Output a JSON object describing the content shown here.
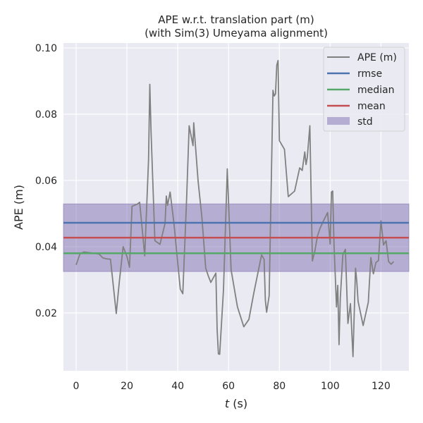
{
  "chart_data": {
    "type": "line",
    "title": "APE w.r.t. translation part (m)",
    "subtitle": "(with Sim(3) Umeyama alignment)",
    "xlabel": "t (s)",
    "xlabel_italic_part": "t",
    "xlabel_rest": " (s)",
    "ylabel": "APE (m)",
    "xlim": [
      -5,
      131
    ],
    "ylim": [
      0.0025,
      0.1015
    ],
    "xticks": [
      0,
      20,
      40,
      60,
      80,
      100,
      120
    ],
    "yticks": [
      0.02,
      0.04,
      0.06,
      0.08,
      0.1
    ],
    "ytick_labels": [
      "0.02",
      "0.04",
      "0.06",
      "0.08",
      "0.10"
    ],
    "grid": true,
    "legend_position": "top-right",
    "legend": [
      "APE (m)",
      "rmse",
      "median",
      "mean",
      "std"
    ],
    "stats": {
      "rmse": 0.0472,
      "median": 0.038,
      "mean": 0.0427,
      "std_low": 0.0325,
      "std_high": 0.0529
    },
    "colors": {
      "ape": "#808080",
      "rmse": "#4c72b0",
      "median": "#55a868",
      "mean": "#c44e52",
      "std": "#8172b2",
      "background": "#eaeaf2",
      "grid": "#ffffff"
    },
    "series": [
      {
        "name": "APE (m)",
        "x": [
          0,
          1.5,
          3,
          5,
          7,
          9,
          10.5,
          12,
          13.5,
          14.5,
          15.8,
          17,
          18.5,
          20,
          21,
          22,
          24,
          25,
          27,
          28.5,
          29,
          29.5,
          31,
          33,
          35,
          35.5,
          36,
          37,
          38.5,
          41,
          42,
          43.5,
          44.5,
          46,
          46.3,
          48,
          49.5,
          51,
          52,
          53,
          55,
          55.5,
          56,
          56.5,
          58,
          59.5,
          61,
          63.5,
          66,
          68,
          70,
          73,
          74,
          74.5,
          75,
          76,
          77.5,
          78,
          78.5,
          79,
          79.5,
          80,
          82,
          83.5,
          86,
          88,
          89,
          90,
          90.5,
          91,
          92,
          93,
          94,
          95,
          96,
          97.5,
          99,
          100,
          100.5,
          101,
          101.5,
          102.5,
          103,
          103.5,
          104,
          105,
          106,
          107,
          108,
          109,
          110,
          110.5,
          111,
          113,
          115,
          116,
          117,
          118,
          119,
          120,
          121,
          122,
          123,
          124,
          125
        ],
        "values": [
          0.0345,
          0.0378,
          0.0384,
          0.0382,
          0.038,
          0.0378,
          0.0366,
          0.0363,
          0.0362,
          0.029,
          0.0198,
          0.0295,
          0.04,
          0.037,
          0.0338,
          0.0522,
          0.0528,
          0.0534,
          0.0372,
          0.0662,
          0.089,
          0.0745,
          0.0418,
          0.0407,
          0.047,
          0.0553,
          0.0525,
          0.0565,
          0.0471,
          0.0272,
          0.0258,
          0.0545,
          0.0765,
          0.0705,
          0.0774,
          0.0598,
          0.0488,
          0.0335,
          0.0312,
          0.0292,
          0.032,
          0.0149,
          0.0076,
          0.0075,
          0.027,
          0.0635,
          0.033,
          0.0218,
          0.0158,
          0.018,
          0.0262,
          0.0375,
          0.0362,
          0.0238,
          0.0202,
          0.0252,
          0.0872,
          0.0855,
          0.0862,
          0.0948,
          0.0962,
          0.072,
          0.0694,
          0.0551,
          0.0568,
          0.0638,
          0.063,
          0.0686,
          0.0648,
          0.067,
          0.0765,
          0.0357,
          0.0388,
          0.0432,
          0.0455,
          0.048,
          0.0503,
          0.0408,
          0.0565,
          0.0568,
          0.0412,
          0.0218,
          0.0283,
          0.0104,
          0.0245,
          0.0375,
          0.0392,
          0.0168,
          0.0228,
          0.0068,
          0.0335,
          0.0295,
          0.0235,
          0.0162,
          0.0232,
          0.0367,
          0.0318,
          0.0352,
          0.0358,
          0.0478,
          0.0405,
          0.0418,
          0.0355,
          0.0347,
          0.0355
        ]
      }
    ]
  }
}
